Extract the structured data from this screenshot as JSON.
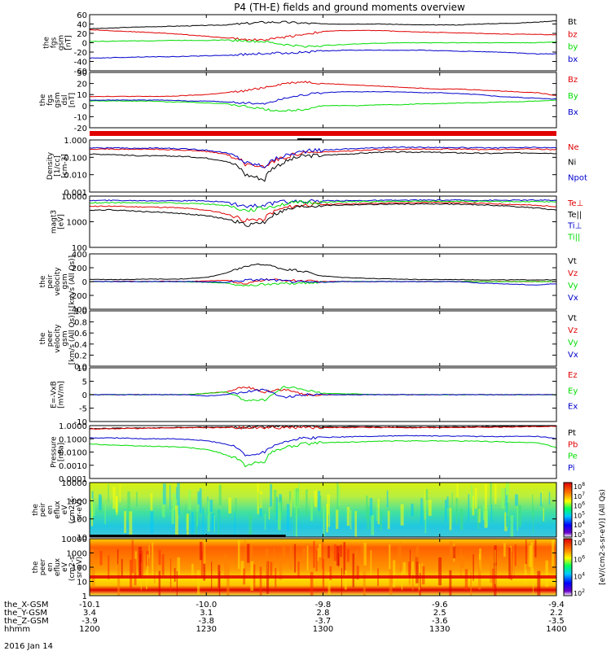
{
  "title": "P4 (TH-E) fields and ground moments overview",
  "date_label": "2016 Jan 14",
  "colors": {
    "black": "#000000",
    "red": "#e00000",
    "green": "#00dd00",
    "blue": "#0000cc"
  },
  "chart_data": [
    {
      "type": "line",
      "id": "fgs",
      "ylabel": [
        "the",
        "fgs",
        "gsm",
        "[nT]"
      ],
      "ylim": [
        -60,
        60
      ],
      "yticks": [
        "60",
        "40",
        "20",
        "0",
        "-20",
        "-40",
        "-60"
      ],
      "series": [
        {
          "name": "Bt",
          "color": "#000000",
          "values": [
            30,
            31,
            33,
            34,
            35,
            36,
            37,
            38,
            41,
            44,
            44,
            42,
            40,
            40,
            40,
            40,
            39,
            38,
            38,
            38,
            40,
            41,
            42,
            44,
            47
          ]
        },
        {
          "name": "bz",
          "color": "#e00000",
          "values": [
            28,
            26,
            24,
            22,
            20,
            17,
            14,
            10,
            7,
            6,
            12,
            18,
            24,
            26,
            26,
            26,
            24,
            23,
            22,
            21,
            20,
            19,
            18,
            18,
            17
          ]
        },
        {
          "name": "by",
          "color": "#00dd00",
          "values": [
            3,
            3,
            4,
            4,
            5,
            5,
            5,
            6,
            4,
            2,
            -4,
            -8,
            -6,
            -4,
            -2,
            -1,
            0,
            0,
            0,
            0,
            0,
            0,
            0,
            0,
            2
          ]
        },
        {
          "name": "bx",
          "color": "#0000cc",
          "values": [
            -33,
            -32,
            -31,
            -30,
            -30,
            -29,
            -28,
            -27,
            -25,
            -23,
            -22,
            -20,
            -18,
            -16,
            -16,
            -16,
            -16,
            -16,
            -17,
            -18,
            -19,
            -20,
            -22,
            -24,
            -24
          ]
        }
      ]
    },
    {
      "type": "line",
      "id": "fgs_dsl",
      "ylabel": [
        "the",
        "fgs",
        "gsm",
        "dsl",
        "[nT]"
      ],
      "ylim": [
        -30,
        30
      ],
      "yticks": [
        "30",
        "20",
        "10",
        "0",
        "-10",
        "-20"
      ],
      "series": [
        {
          "name": "Bz",
          "color": "#e00000",
          "values": [
            4,
            4,
            4,
            4,
            4,
            5,
            6,
            8,
            10,
            14,
            18,
            20,
            18,
            17,
            16,
            15,
            14,
            13,
            12,
            12,
            11,
            10,
            9,
            8,
            5
          ]
        },
        {
          "name": "By",
          "color": "#00dd00",
          "values": [
            -1,
            -1,
            -1,
            -1,
            -2,
            -2,
            -3,
            -4,
            -7,
            -10,
            -12,
            -10,
            -6,
            -6,
            -6,
            -5,
            -5,
            -4,
            -4,
            -3,
            -3,
            -2,
            -2,
            -1,
            0
          ]
        },
        {
          "name": "Bx",
          "color": "#0000cc",
          "values": [
            0,
            0,
            0,
            0,
            0,
            -1,
            -1,
            -2,
            -3,
            -4,
            2,
            6,
            8,
            9,
            9,
            9,
            9,
            8,
            8,
            7,
            6,
            4,
            3,
            2,
            1
          ]
        }
      ]
    },
    {
      "type": "log-line",
      "id": "density",
      "ylabel": [
        "Density",
        "[1/cc]",
        "[cm-3]"
      ],
      "log_ylim": [
        -3,
        0
      ],
      "yticks": [
        "1.000",
        "0.100",
        "0.010",
        "0.001"
      ],
      "series": [
        {
          "name": "Ne",
          "color": "#e00000",
          "values": [
            0.3,
            0.3,
            0.28,
            0.3,
            0.28,
            0.25,
            0.22,
            0.15,
            0.04,
            0.03,
            0.1,
            0.18,
            0.2,
            0.22,
            0.25,
            0.28,
            0.3,
            0.3,
            0.3,
            0.3,
            0.28,
            0.28,
            0.3,
            0.3,
            0.28
          ]
        },
        {
          "name": "Ni",
          "color": "#000000",
          "values": [
            0.15,
            0.15,
            0.13,
            0.12,
            0.12,
            0.11,
            0.09,
            0.06,
            0.01,
            0.005,
            0.05,
            0.12,
            0.13,
            0.15,
            0.17,
            0.2,
            0.2,
            0.2,
            0.19,
            0.18,
            0.17,
            0.17,
            0.18,
            0.18,
            0.17
          ]
        },
        {
          "name": "Npot",
          "color": "#0000cc",
          "values": [
            0.35,
            0.35,
            0.33,
            0.34,
            0.33,
            0.3,
            0.26,
            0.18,
            0.05,
            0.03,
            0.12,
            0.22,
            0.26,
            0.3,
            0.33,
            0.36,
            0.38,
            0.38,
            0.37,
            0.36,
            0.35,
            0.35,
            0.36,
            0.37,
            0.35
          ]
        }
      ]
    },
    {
      "type": "log-line",
      "id": "temp",
      "ylabel": [
        "magt3",
        "[eV]"
      ],
      "log_ylim": [
        1,
        4
      ],
      "yticks": [
        "10000",
        "1000",
        "100"
      ],
      "series": [
        {
          "name": "Te⊥",
          "color": "#e00000",
          "values": [
            2500,
            2600,
            2400,
            2300,
            2200,
            1900,
            1500,
            900,
            350,
            500,
            2000,
            3000,
            3200,
            3500,
            3600,
            3800,
            4000,
            4200,
            4300,
            4000,
            3800,
            3500,
            3200,
            2800,
            2500
          ]
        },
        {
          "name": "Te||",
          "color": "#000000",
          "values": [
            1500,
            1600,
            1400,
            1200,
            1100,
            900,
            700,
            450,
            200,
            300,
            1400,
            2500,
            2800,
            3000,
            3200,
            3300,
            3400,
            3500,
            3500,
            3300,
            3100,
            2800,
            2400,
            2000,
            1500
          ]
        },
        {
          "name": "Ti⊥",
          "color": "#0000cc",
          "values": [
            5500,
            5600,
            5500,
            5400,
            5400,
            5300,
            5200,
            4500,
            2500,
            3000,
            4500,
            5000,
            5200,
            5400,
            5500,
            5600,
            5700,
            5800,
            5800,
            5800,
            5700,
            5700,
            5800,
            5800,
            5600
          ]
        },
        {
          "name": "Ti||",
          "color": "#00dd00",
          "values": [
            4000,
            4200,
            4100,
            4000,
            4000,
            3800,
            3500,
            2800,
            1500,
            2000,
            3500,
            4200,
            4400,
            4600,
            4700,
            4800,
            4900,
            5000,
            5000,
            5000,
            4900,
            4800,
            4800,
            4700,
            4500
          ]
        }
      ]
    },
    {
      "type": "line",
      "id": "peir_vel",
      "ylabel": [
        "the",
        "peir",
        "velocity",
        "gsm",
        "[km/s (All Qs)]"
      ],
      "ylim": [
        -400,
        400
      ],
      "yticks": [
        "400",
        "200",
        "0",
        "-200",
        "-400"
      ],
      "series": [
        {
          "name": "Vt",
          "color": "#000000",
          "values": [
            30,
            30,
            30,
            35,
            35,
            40,
            60,
            120,
            220,
            250,
            180,
            150,
            80,
            60,
            50,
            40,
            35,
            30,
            30,
            30,
            25,
            25,
            25,
            25,
            25
          ]
        },
        {
          "name": "Vz",
          "color": "#e00000",
          "values": [
            0,
            0,
            5,
            0,
            5,
            0,
            10,
            20,
            -40,
            30,
            20,
            10,
            0,
            0,
            0,
            0,
            0,
            0,
            0,
            0,
            0,
            0,
            0,
            0,
            0
          ]
        },
        {
          "name": "Vy",
          "color": "#00dd00",
          "values": [
            0,
            0,
            0,
            0,
            0,
            -5,
            -10,
            -20,
            -60,
            -40,
            -30,
            -20,
            -10,
            0,
            0,
            0,
            0,
            0,
            0,
            0,
            0,
            0,
            0,
            0,
            0
          ]
        },
        {
          "name": "Vx",
          "color": "#0000cc",
          "values": [
            0,
            0,
            0,
            0,
            0,
            0,
            -5,
            -10,
            20,
            30,
            10,
            -10,
            -10,
            0,
            0,
            0,
            0,
            0,
            0,
            0,
            -20,
            -30,
            -40,
            -50,
            -30
          ]
        }
      ]
    },
    {
      "type": "line",
      "id": "peer_vel",
      "ylabel": [
        "the",
        "peer",
        "velocity",
        "gsm",
        "[km/s (All Qs)]"
      ],
      "ylim": [
        0,
        1
      ],
      "yticks": [
        "1.0",
        "0.8",
        "0.6",
        "0.4",
        "0.2",
        "0.0"
      ],
      "series": [
        {
          "name": "Vt",
          "color": "#000000",
          "values": []
        },
        {
          "name": "Vz",
          "color": "#e00000",
          "values": []
        },
        {
          "name": "Vy",
          "color": "#00dd00",
          "values": []
        },
        {
          "name": "Vx",
          "color": "#0000cc",
          "values": []
        }
      ]
    },
    {
      "type": "line",
      "id": "efield",
      "ylabel": [
        "E=-VxB",
        "[mV/m]"
      ],
      "ylim": [
        -10,
        10
      ],
      "yticks": [
        "10",
        "5",
        "0",
        "-5",
        "-10"
      ],
      "series": [
        {
          "name": "Ez",
          "color": "#e00000",
          "values": [
            0,
            0,
            0,
            0,
            0,
            0,
            0.5,
            1,
            3,
            1,
            2,
            0,
            0,
            0,
            0,
            0,
            0,
            0,
            0,
            0,
            0,
            0,
            0,
            0,
            0
          ]
        },
        {
          "name": "Ey",
          "color": "#00dd00",
          "values": [
            0,
            0,
            0,
            0,
            0,
            0,
            0.5,
            1,
            -2,
            -2,
            3,
            2,
            0.5,
            0.3,
            0.2,
            0,
            0,
            0,
            0,
            0,
            0,
            0,
            0,
            0,
            0
          ]
        },
        {
          "name": "Ex",
          "color": "#0000cc",
          "values": [
            0,
            0,
            0,
            0,
            0,
            0,
            -0.5,
            0,
            1,
            2,
            -1,
            0,
            0,
            0,
            0,
            0,
            0,
            0,
            0,
            0,
            0,
            0,
            0,
            0,
            0
          ]
        }
      ]
    },
    {
      "type": "log-line",
      "id": "pressure",
      "ylabel": [
        "Pressure",
        "[nPa]"
      ],
      "log_ylim": [
        -4,
        0
      ],
      "yticks": [
        "1.0000",
        "0.1000",
        "0.0100",
        "0.0010",
        "0.0001"
      ],
      "series": [
        {
          "name": "Pt",
          "color": "#000000",
          "values": [
            0.6,
            0.62,
            0.64,
            0.66,
            0.7,
            0.72,
            0.74,
            0.76,
            0.8,
            0.85,
            0.84,
            0.82,
            0.8,
            0.8,
            0.8,
            0.79,
            0.78,
            0.78,
            0.78,
            0.8,
            0.82,
            0.84,
            0.86,
            0.9,
            0.95
          ]
        },
        {
          "name": "Pb",
          "color": "#e00000",
          "values": [
            0.55,
            0.57,
            0.6,
            0.63,
            0.66,
            0.68,
            0.7,
            0.7,
            0.68,
            0.72,
            0.74,
            0.73,
            0.72,
            0.72,
            0.72,
            0.71,
            0.7,
            0.7,
            0.7,
            0.72,
            0.74,
            0.76,
            0.8,
            0.84,
            0.9
          ]
        },
        {
          "name": "Pe",
          "color": "#00dd00",
          "values": [
            0.04,
            0.035,
            0.03,
            0.028,
            0.026,
            0.022,
            0.015,
            0.006,
            0.0008,
            0.002,
            0.02,
            0.04,
            0.05,
            0.055,
            0.06,
            0.065,
            0.07,
            0.07,
            0.07,
            0.068,
            0.065,
            0.06,
            0.055,
            0.05,
            0.02
          ]
        },
        {
          "name": "Pi",
          "color": "#0000cc",
          "values": [
            0.12,
            0.12,
            0.11,
            0.1,
            0.1,
            0.09,
            0.07,
            0.04,
            0.005,
            0.01,
            0.06,
            0.11,
            0.13,
            0.14,
            0.15,
            0.16,
            0.17,
            0.17,
            0.16,
            0.16,
            0.15,
            0.15,
            0.15,
            0.15,
            0.1
          ]
        }
      ]
    },
    {
      "type": "heatmap",
      "id": "peir_spec",
      "ylabel": [
        "the",
        "peir",
        "en",
        "eflux",
        "eV",
        "(cm2-s-",
        "sr-eV)"
      ],
      "yticks": [
        "10000",
        "1000",
        "100",
        "10"
      ],
      "log_ylim": [
        0.8,
        4.35
      ],
      "colorbar": {
        "label": "[eV/(cm2-s-sr-eV)] (All Qs)",
        "ticks": [
          "10^8",
          "10^7",
          "10^6",
          "10^5",
          "10^4",
          "10^3"
        ]
      }
    },
    {
      "type": "heatmap",
      "id": "peer_spec",
      "ylabel": [
        "the",
        "peer",
        "en",
        "eflux",
        "eV",
        "(cm2-s-",
        "sr-eV)"
      ],
      "yticks": [
        "10000",
        "1000",
        "100",
        "10",
        "1"
      ],
      "log_ylim": [
        0,
        4.3
      ],
      "colorbar": {
        "label": "[eV/(cm2-s-sr-eV)]",
        "ticks": [
          "10^8",
          "10^6",
          "10^4",
          "10^2"
        ]
      }
    }
  ],
  "x_axis": {
    "row_labels": [
      "the_X-GSM",
      "the_Y-GSM",
      "the_Z-GSM",
      "hhmm"
    ],
    "ticks": [
      {
        "values": [
          "-10.1",
          "3.4",
          "-3.9",
          "1200"
        ]
      },
      {
        "values": [
          "-10.0",
          "3.1",
          "-3.8",
          "1230"
        ]
      },
      {
        "values": [
          "-9.8",
          "2.8",
          "-3.7",
          "1300"
        ]
      },
      {
        "values": [
          "-9.6",
          "2.5",
          "-3.6",
          "1330"
        ]
      },
      {
        "values": [
          "-9.4",
          "2.2",
          "-3.5",
          "1400"
        ]
      }
    ]
  }
}
